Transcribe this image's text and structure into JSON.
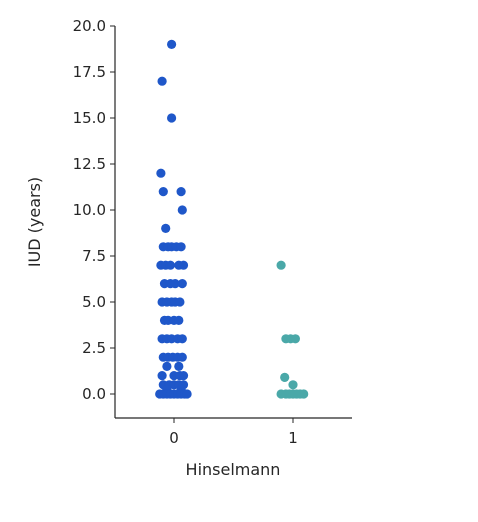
{
  "chart_data": {
    "type": "scatter",
    "subtype": "stripplot",
    "title": "",
    "xlabel": "Hinselmann",
    "ylabel": "IUD (years)",
    "categories": [
      "0",
      "1"
    ],
    "ylim": [
      -1.2,
      20.0
    ],
    "yticks": [
      "0.0",
      "2.5",
      "5.0",
      "7.5",
      "10.0",
      "12.5",
      "15.0",
      "17.5",
      "20.0"
    ],
    "grid": false,
    "legend": "none",
    "colors": {
      "0": "#1f57c9",
      "1": "#4aa8a8"
    },
    "series": [
      {
        "category": "0",
        "points": [
          [
            -0.02,
            19
          ],
          [
            -0.1,
            17
          ],
          [
            -0.02,
            15
          ],
          [
            -0.11,
            12
          ],
          [
            -0.09,
            11
          ],
          [
            0.06,
            11
          ],
          [
            0.07,
            10
          ],
          [
            -0.07,
            9
          ],
          [
            -0.09,
            8
          ],
          [
            -0.05,
            8
          ],
          [
            -0.02,
            8
          ],
          [
            0.02,
            8
          ],
          [
            0.06,
            8
          ],
          [
            -0.11,
            7
          ],
          [
            -0.07,
            7
          ],
          [
            -0.03,
            7
          ],
          [
            0.04,
            7
          ],
          [
            0.08,
            7
          ],
          [
            -0.08,
            6
          ],
          [
            -0.03,
            6
          ],
          [
            0.01,
            6
          ],
          [
            0.07,
            6
          ],
          [
            -0.1,
            5
          ],
          [
            -0.06,
            5
          ],
          [
            -0.02,
            5
          ],
          [
            0.01,
            5
          ],
          [
            0.05,
            5
          ],
          [
            -0.08,
            4
          ],
          [
            -0.05,
            4
          ],
          [
            0.0,
            4
          ],
          [
            0.04,
            4
          ],
          [
            -0.1,
            3
          ],
          [
            -0.06,
            3
          ],
          [
            -0.02,
            3
          ],
          [
            0.03,
            3
          ],
          [
            0.07,
            3
          ],
          [
            -0.09,
            2
          ],
          [
            -0.05,
            2
          ],
          [
            -0.01,
            2
          ],
          [
            0.03,
            2
          ],
          [
            0.07,
            2
          ],
          [
            -0.06,
            1.5
          ],
          [
            0.04,
            1.5
          ],
          [
            -0.1,
            1
          ],
          [
            0.0,
            1
          ],
          [
            0.05,
            1
          ],
          [
            0.08,
            1
          ],
          [
            -0.09,
            0.5
          ],
          [
            -0.04,
            0.5
          ],
          [
            0.0,
            0.5
          ],
          [
            0.04,
            0.5
          ],
          [
            0.08,
            0.5
          ],
          [
            -0.06,
            0.25
          ],
          [
            0.06,
            0.25
          ],
          [
            -0.12,
            0
          ],
          [
            -0.09,
            0
          ],
          [
            -0.06,
            0
          ],
          [
            -0.03,
            0
          ],
          [
            0.0,
            0
          ],
          [
            0.03,
            0
          ],
          [
            0.06,
            0
          ],
          [
            0.09,
            0
          ],
          [
            0.11,
            0
          ]
        ]
      },
      {
        "category": "1",
        "points": [
          [
            -0.1,
            7
          ],
          [
            -0.06,
            3
          ],
          [
            -0.02,
            3
          ],
          [
            0.02,
            3
          ],
          [
            -0.07,
            0.9
          ],
          [
            0.0,
            0.5
          ],
          [
            -0.1,
            0
          ],
          [
            -0.06,
            0
          ],
          [
            -0.03,
            0
          ],
          [
            0.0,
            0
          ],
          [
            0.03,
            0
          ],
          [
            0.06,
            0
          ],
          [
            0.09,
            0
          ]
        ]
      }
    ]
  }
}
